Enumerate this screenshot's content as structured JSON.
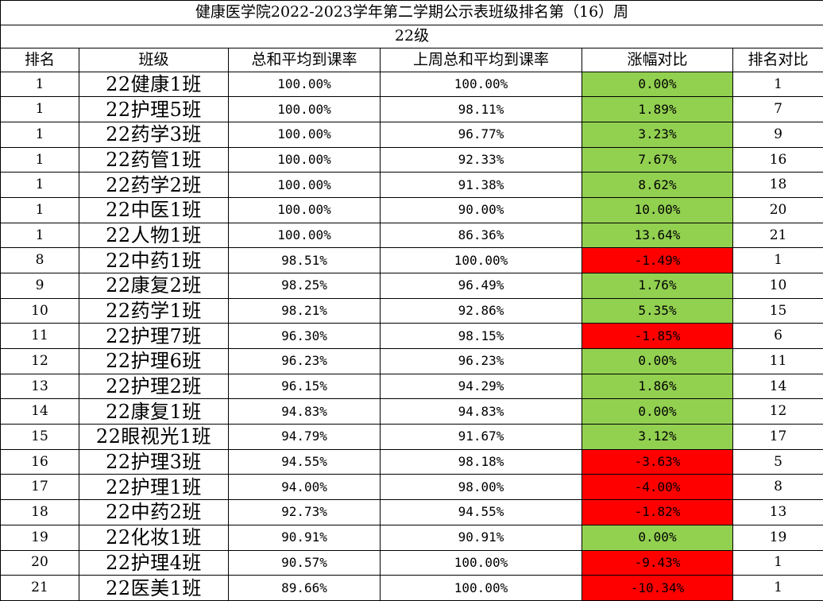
{
  "title": "健康医学院2022-2023学年第二学期公示表班级排名第（16）周",
  "grade": "22级",
  "headers": [
    "排名",
    "班级",
    "总和平均到课率",
    "上周总和平均到课率",
    "涨幅对比",
    "排名对比"
  ],
  "colors": {
    "increase": "#92d050",
    "decrease": "#ff0000"
  },
  "rows": [
    {
      "rank": "1",
      "class": "22健康1班",
      "rate": "100.00%",
      "prev_rate": "100.00%",
      "change": "0.00%",
      "rank_cmp": "1",
      "trend": "up"
    },
    {
      "rank": "1",
      "class": "22护理5班",
      "rate": "100.00%",
      "prev_rate": "98.11%",
      "change": "1.89%",
      "rank_cmp": "7",
      "trend": "up"
    },
    {
      "rank": "1",
      "class": "22药学3班",
      "rate": "100.00%",
      "prev_rate": "96.77%",
      "change": "3.23%",
      "rank_cmp": "9",
      "trend": "up"
    },
    {
      "rank": "1",
      "class": "22药管1班",
      "rate": "100.00%",
      "prev_rate": "92.33%",
      "change": "7.67%",
      "rank_cmp": "16",
      "trend": "up"
    },
    {
      "rank": "1",
      "class": "22药学2班",
      "rate": "100.00%",
      "prev_rate": "91.38%",
      "change": "8.62%",
      "rank_cmp": "18",
      "trend": "up"
    },
    {
      "rank": "1",
      "class": "22中医1班",
      "rate": "100.00%",
      "prev_rate": "90.00%",
      "change": "10.00%",
      "rank_cmp": "20",
      "trend": "up"
    },
    {
      "rank": "1",
      "class": "22人物1班",
      "rate": "100.00%",
      "prev_rate": "86.36%",
      "change": "13.64%",
      "rank_cmp": "21",
      "trend": "up"
    },
    {
      "rank": "8",
      "class": "22中药1班",
      "rate": "98.51%",
      "prev_rate": "100.00%",
      "change": "-1.49%",
      "rank_cmp": "1",
      "trend": "down"
    },
    {
      "rank": "9",
      "class": "22康复2班",
      "rate": "98.25%",
      "prev_rate": "96.49%",
      "change": "1.76%",
      "rank_cmp": "10",
      "trend": "up"
    },
    {
      "rank": "10",
      "class": "22药学1班",
      "rate": "98.21%",
      "prev_rate": "92.86%",
      "change": "5.35%",
      "rank_cmp": "15",
      "trend": "up"
    },
    {
      "rank": "11",
      "class": "22护理7班",
      "rate": "96.30%",
      "prev_rate": "98.15%",
      "change": "-1.85%",
      "rank_cmp": "6",
      "trend": "down"
    },
    {
      "rank": "12",
      "class": "22护理6班",
      "rate": "96.23%",
      "prev_rate": "96.23%",
      "change": "0.00%",
      "rank_cmp": "11",
      "trend": "up"
    },
    {
      "rank": "13",
      "class": "22护理2班",
      "rate": "96.15%",
      "prev_rate": "94.29%",
      "change": "1.86%",
      "rank_cmp": "14",
      "trend": "up"
    },
    {
      "rank": "14",
      "class": "22康复1班",
      "rate": "94.83%",
      "prev_rate": "94.83%",
      "change": "0.00%",
      "rank_cmp": "12",
      "trend": "up"
    },
    {
      "rank": "15",
      "class": "22眼视光1班",
      "rate": "94.79%",
      "prev_rate": "91.67%",
      "change": "3.12%",
      "rank_cmp": "17",
      "trend": "up"
    },
    {
      "rank": "16",
      "class": "22护理3班",
      "rate": "94.55%",
      "prev_rate": "98.18%",
      "change": "-3.63%",
      "rank_cmp": "5",
      "trend": "down"
    },
    {
      "rank": "17",
      "class": "22护理1班",
      "rate": "94.00%",
      "prev_rate": "98.00%",
      "change": "-4.00%",
      "rank_cmp": "8",
      "trend": "down"
    },
    {
      "rank": "18",
      "class": "22中药2班",
      "rate": "92.73%",
      "prev_rate": "94.55%",
      "change": "-1.82%",
      "rank_cmp": "13",
      "trend": "down"
    },
    {
      "rank": "19",
      "class": "22化妆1班",
      "rate": "90.91%",
      "prev_rate": "90.91%",
      "change": "0.00%",
      "rank_cmp": "19",
      "trend": "up"
    },
    {
      "rank": "20",
      "class": "22护理4班",
      "rate": "90.57%",
      "prev_rate": "100.00%",
      "change": "-9.43%",
      "rank_cmp": "1",
      "trend": "down"
    },
    {
      "rank": "21",
      "class": "22医美1班",
      "rate": "89.66%",
      "prev_rate": "100.00%",
      "change": "-10.34%",
      "rank_cmp": "1",
      "trend": "down"
    }
  ]
}
